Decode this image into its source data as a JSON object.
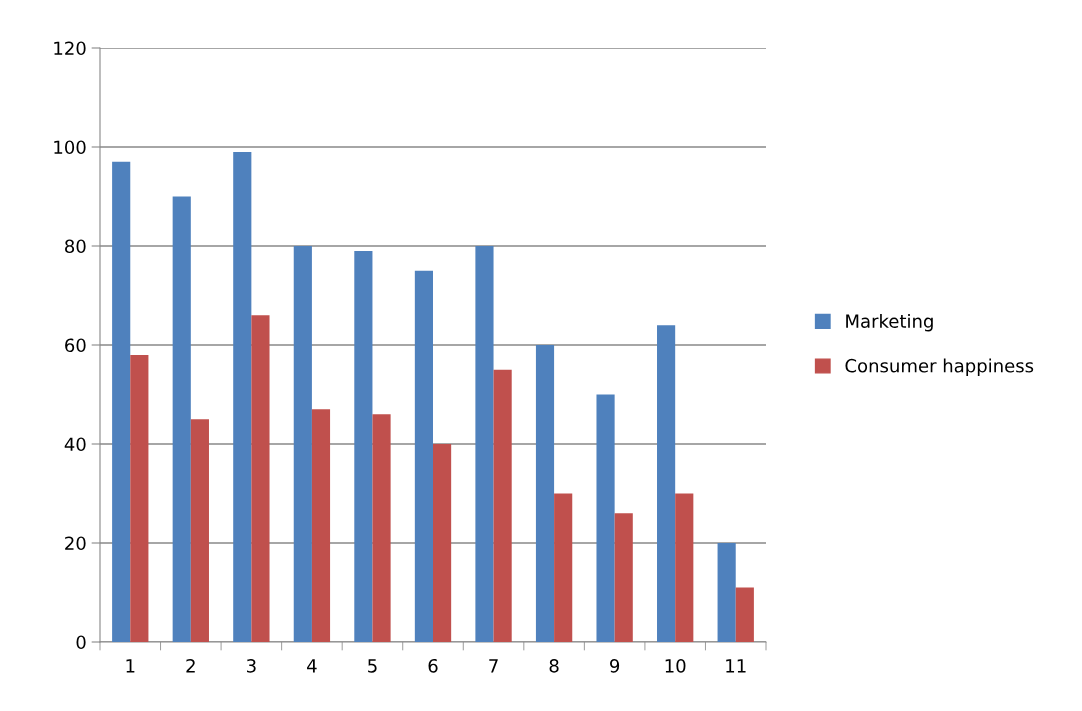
{
  "chart_data": {
    "type": "bar",
    "categories": [
      "1",
      "2",
      "3",
      "4",
      "5",
      "6",
      "7",
      "8",
      "9",
      "10",
      "11"
    ],
    "series": [
      {
        "name": "Marketing",
        "color": "#4f81bd",
        "values": [
          97,
          90,
          99,
          80,
          79,
          75,
          80,
          60,
          50,
          64,
          20
        ]
      },
      {
        "name": "Consumer happiness",
        "color": "#c0504d",
        "values": [
          58,
          45,
          66,
          47,
          46,
          40,
          55,
          30,
          26,
          30,
          11
        ]
      }
    ],
    "ylim": [
      0,
      120
    ],
    "yticks": [
      0,
      20,
      40,
      60,
      80,
      100,
      120
    ],
    "grid": "y",
    "legend": "right"
  }
}
